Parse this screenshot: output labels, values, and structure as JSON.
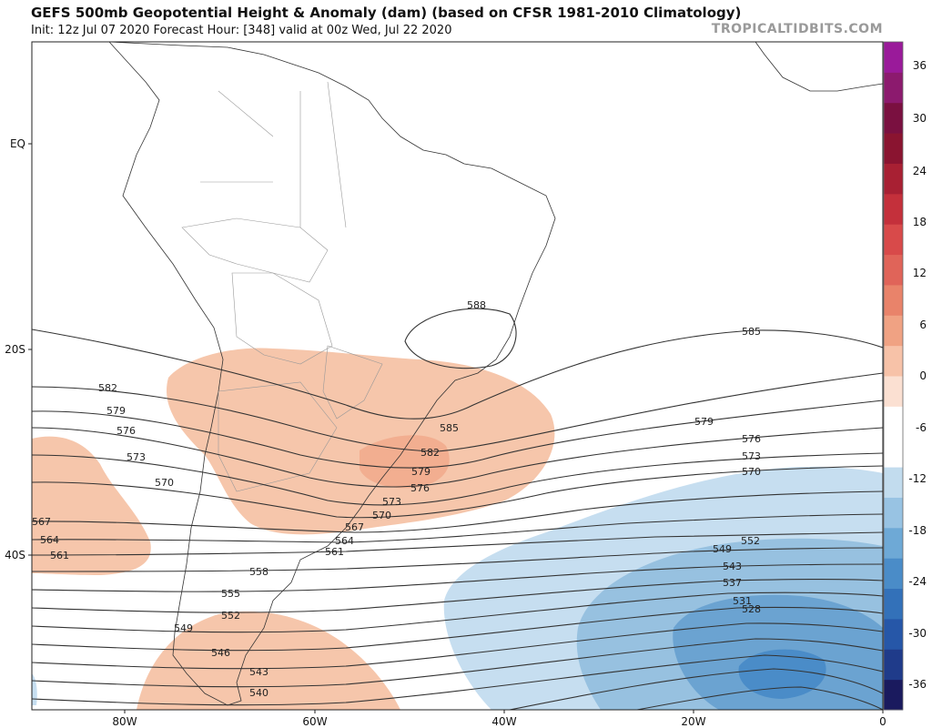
{
  "header": {
    "title": "GEFS 500mb Geopotential Height & Anomaly (dam) (based on CFSR 1981-2010 Climatology)",
    "subtitle": "Init: 12z Jul 07 2020   Forecast Hour: [348]   valid at 00z Wed, Jul 22 2020",
    "brand": "TROPICALTIDBITS.COM"
  },
  "map": {
    "lat_labels": [
      "EQ",
      "20S",
      "40S"
    ],
    "lon_labels": [
      "80W",
      "60W",
      "40W",
      "20W",
      "0"
    ],
    "contour_labels": [
      "588",
      "585",
      "585",
      "582",
      "582",
      "579",
      "579",
      "579",
      "576",
      "576",
      "576",
      "573",
      "573",
      "573",
      "570",
      "570",
      "570",
      "567",
      "567",
      "564",
      "564",
      "561",
      "561",
      "558",
      "555",
      "552",
      "552",
      "549",
      "549",
      "546",
      "543",
      "543",
      "540",
      "537",
      "531",
      "528"
    ],
    "anomaly_colors": {
      "positive": "#f6c3a6",
      "negative_light": "#b9d6e8",
      "negative_mid": "#8dbcdb",
      "negative_dark": "#5d9bc9"
    }
  },
  "colorbar": {
    "labels": [
      "36",
      "30",
      "24",
      "18",
      "12",
      "6",
      "0",
      "-6",
      "-12",
      "-18",
      "-24",
      "-30",
      "-36"
    ],
    "colors": [
      "#1a1a5e",
      "#1f3b8a",
      "#2657a8",
      "#3371b9",
      "#4a8cc8",
      "#6ea9d6",
      "#98c3e3",
      "#c2dcee",
      "#ffffff",
      "#ffffff",
      "#fbe0d2",
      "#f7c2a8",
      "#f0a283",
      "#e9836a",
      "#e06459",
      "#d84a4a",
      "#c4303b",
      "#a82033",
      "#8a1430",
      "#7a1040",
      "#8c1a6e",
      "#9a1a9a"
    ]
  }
}
